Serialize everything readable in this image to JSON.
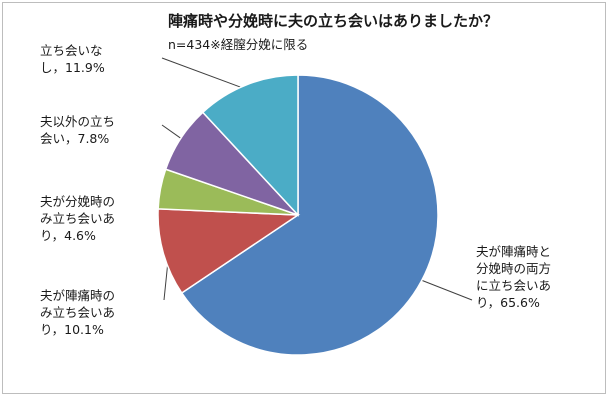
{
  "chart_data": {
    "type": "pie",
    "title": "陣痛時や分娩時に夫の立ち会いはありましたか？",
    "subtitle": "n=434※経膣分娩に限る",
    "start": "12 o'clock",
    "direction": "clockwise",
    "slices": [
      {
        "label_lines": [
          "夫が陣痛時と",
          "分娩時の両方",
          "に立ち会いあ",
          "り，65.6%"
        ],
        "value": 65.6,
        "color": "#4f81bd"
      },
      {
        "label_lines": [
          "夫が陣痛時の",
          "み立ち会いあ",
          "り，10.1%"
        ],
        "value": 10.1,
        "color": "#c0504d"
      },
      {
        "label_lines": [
          "夫が分娩時の",
          "み立ち会いあ",
          "り，4.6%"
        ],
        "value": 4.6,
        "color": "#9bbb59"
      },
      {
        "label_lines": [
          "夫以外の立ち",
          "会い，7.8%"
        ],
        "value": 7.8,
        "color": "#8064a2"
      },
      {
        "label_lines": [
          "立ち会いな",
          "し，11.9%"
        ],
        "value": 11.9,
        "color": "#4bacc6"
      }
    ]
  }
}
